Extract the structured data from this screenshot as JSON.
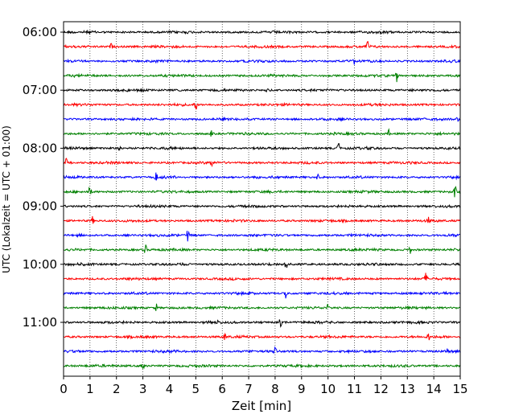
{
  "chart_data": {
    "type": "line",
    "xlabel": "Zeit  [min]",
    "ylabel": "UTC (Lokalzeit = UTC + 01:00)",
    "xlim": [
      0,
      15
    ],
    "x_ticks": [
      0,
      1,
      2,
      3,
      4,
      5,
      6,
      7,
      8,
      9,
      10,
      11,
      12,
      13,
      14,
      15
    ],
    "y_tick_labels": [
      "06:00",
      "07:00",
      "08:00",
      "09:00",
      "10:00",
      "11:00"
    ],
    "rows_per_hour": 4,
    "trace_count": 24,
    "grid": "vertical dotted",
    "series_colors": [
      "#000000",
      "#ff0000",
      "#0000ff",
      "#008000"
    ],
    "spikes": [
      {
        "row": 1,
        "t": 1.8,
        "amp": 0.5
      },
      {
        "row": 1,
        "t": 11.5,
        "amp": 1.0
      },
      {
        "row": 2,
        "t": 11.0,
        "amp": 0.5
      },
      {
        "row": 3,
        "t": 12.6,
        "amp": 0.8
      },
      {
        "row": 4,
        "t": 7.7,
        "amp": 0.5
      },
      {
        "row": 5,
        "t": 5.0,
        "amp": 0.9
      },
      {
        "row": 6,
        "t": 14.9,
        "amp": 0.6
      },
      {
        "row": 7,
        "t": 5.6,
        "amp": 0.6
      },
      {
        "row": 7,
        "t": 12.3,
        "amp": 0.5
      },
      {
        "row": 8,
        "t": 2.1,
        "amp": 0.6
      },
      {
        "row": 8,
        "t": 10.4,
        "amp": 1.0
      },
      {
        "row": 9,
        "t": 0.1,
        "amp": 0.6
      },
      {
        "row": 9,
        "t": 5.6,
        "amp": 1.0
      },
      {
        "row": 10,
        "t": 3.5,
        "amp": 0.8
      },
      {
        "row": 10,
        "t": 9.6,
        "amp": 0.6
      },
      {
        "row": 11,
        "t": 1.0,
        "amp": 1.0
      },
      {
        "row": 11,
        "t": 14.8,
        "amp": 1.1
      },
      {
        "row": 12,
        "t": 8.1,
        "amp": 0.5
      },
      {
        "row": 13,
        "t": 1.1,
        "amp": 0.6
      },
      {
        "row": 13,
        "t": 13.8,
        "amp": 0.5
      },
      {
        "row": 14,
        "t": 4.7,
        "amp": 1.0
      },
      {
        "row": 15,
        "t": 3.1,
        "amp": 0.8
      },
      {
        "row": 15,
        "t": 13.1,
        "amp": 0.6
      },
      {
        "row": 16,
        "t": 8.4,
        "amp": 1.1
      },
      {
        "row": 17,
        "t": 13.7,
        "amp": 0.9
      },
      {
        "row": 18,
        "t": 8.4,
        "amp": 0.6
      },
      {
        "row": 19,
        "t": 3.5,
        "amp": 0.6
      },
      {
        "row": 19,
        "t": 10.0,
        "amp": 0.5
      },
      {
        "row": 20,
        "t": 5.8,
        "amp": 0.5
      },
      {
        "row": 20,
        "t": 8.2,
        "amp": 0.7
      },
      {
        "row": 21,
        "t": 6.1,
        "amp": 0.6
      },
      {
        "row": 21,
        "t": 13.8,
        "amp": 0.6
      },
      {
        "row": 22,
        "t": 8.0,
        "amp": 0.6
      },
      {
        "row": 22,
        "t": 14.5,
        "amp": 0.6
      },
      {
        "row": 23,
        "t": 3.0,
        "amp": 0.7
      }
    ]
  }
}
